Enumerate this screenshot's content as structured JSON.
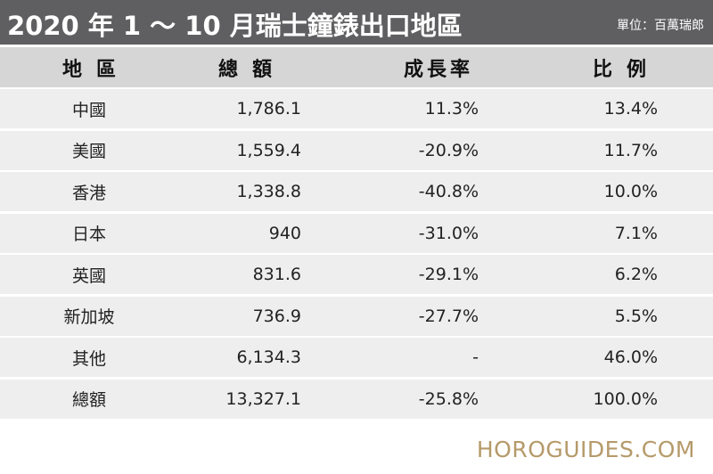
{
  "title": "2020 年 1 ～ 10 月瑞士鐘錶出口地區",
  "unit": "單位：百萬瑞郎",
  "colors": {
    "title_bg": "#5f5e60",
    "header_bg": "#d6d6d6",
    "row_bg": "#eeeeee",
    "watermark": "#b59a6a"
  },
  "chart_data": {
    "type": "table",
    "title": "2020 年 1 ～ 10 月瑞士鐘錶出口地區",
    "columns": [
      "地區",
      "總額",
      "成長率",
      "比例"
    ],
    "rows": [
      [
        "中國",
        "1,786.1",
        "11.3%",
        "13.4%"
      ],
      [
        "美國",
        "1,559.4",
        "-20.9%",
        "11.7%"
      ],
      [
        "香港",
        "1,338.8",
        "-40.8%",
        "10.0%"
      ],
      [
        "日本",
        "940",
        "-31.0%",
        "7.1%"
      ],
      [
        "英國",
        "831.6",
        "-29.1%",
        "6.2%"
      ],
      [
        "新加坡",
        "736.9",
        "-27.7%",
        "5.5%"
      ],
      [
        "其他",
        "6,134.3",
        "-",
        "46.0%"
      ],
      [
        "總額",
        "13,327.1",
        "-25.8%",
        "100.0%"
      ]
    ]
  },
  "watermark": "HOROGUIDES.COM"
}
